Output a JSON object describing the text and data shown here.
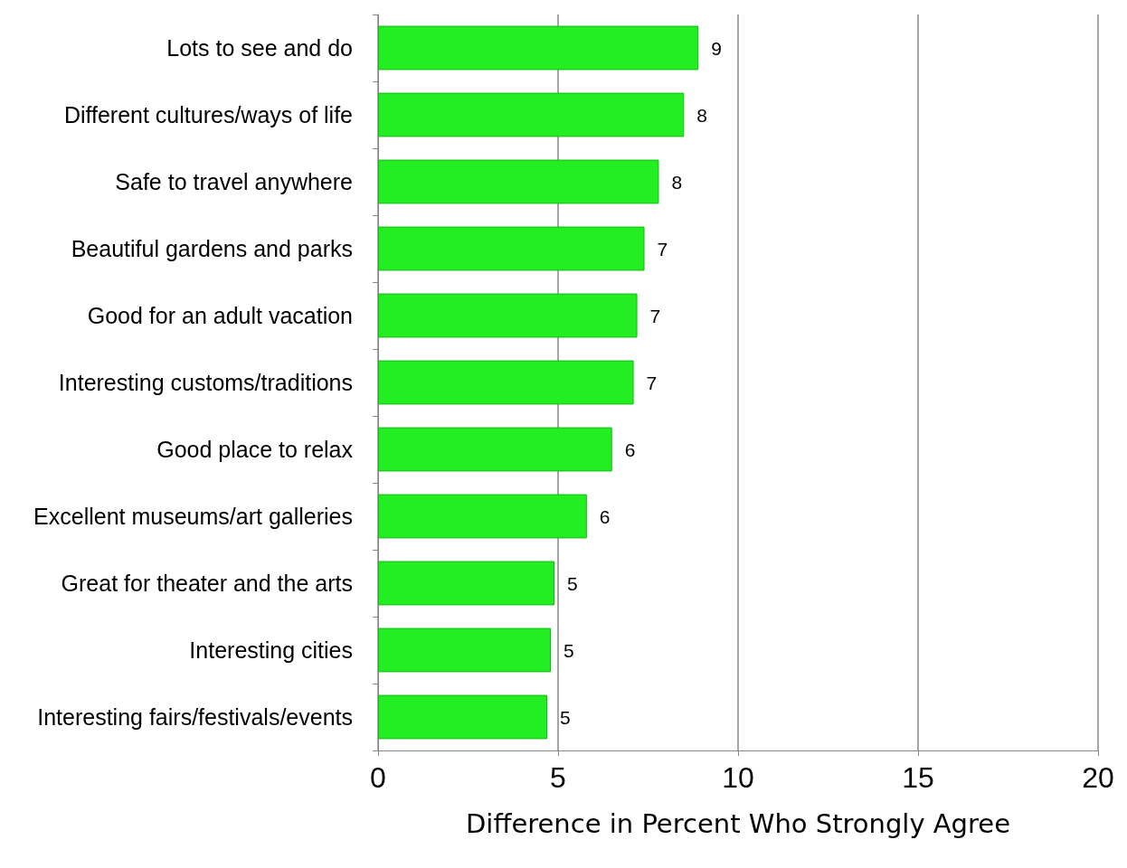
{
  "chart_data": {
    "type": "bar",
    "orientation": "horizontal",
    "xlabel": "Difference in Percent Who Strongly Agree",
    "categories": [
      "Lots to see and do",
      "Different cultures/ways of life",
      "Safe to travel anywhere",
      "Beautiful gardens and parks",
      "Good for an adult vacation",
      "Interesting customs/traditions",
      "Good place to relax",
      "Excellent museums/art galleries",
      "Great for theater and the arts",
      "Interesting cities",
      "Interesting fairs/festivals/events"
    ],
    "values": [
      8.9,
      8.5,
      7.8,
      7.4,
      7.2,
      7.1,
      6.5,
      5.8,
      4.9,
      4.8,
      4.7
    ],
    "value_labels": [
      "9",
      "8",
      "8",
      "7",
      "7",
      "7",
      "6",
      "6",
      "5",
      "5",
      "5"
    ],
    "color": "#22ee22",
    "xlim": [
      0,
      20
    ],
    "xticks": [
      0,
      5,
      10,
      15,
      20
    ],
    "grid": "x"
  }
}
